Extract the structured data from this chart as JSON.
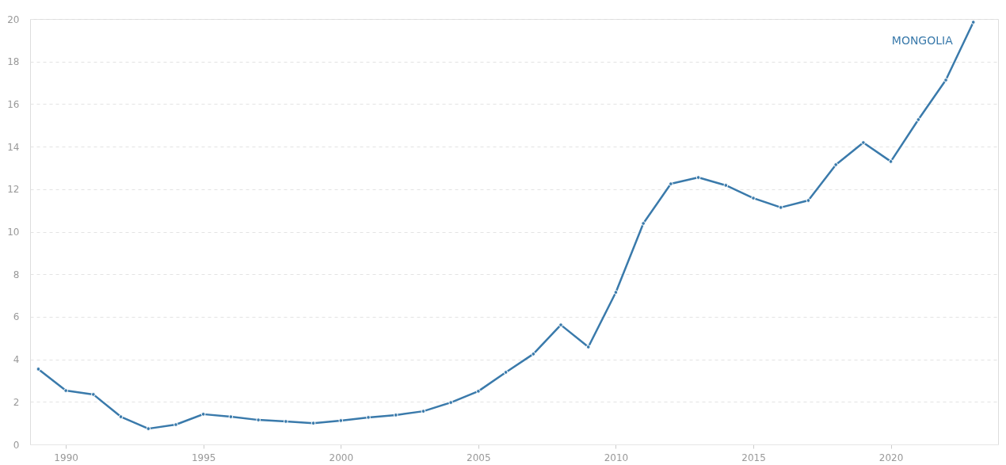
{
  "chart_data": {
    "type": "line",
    "x": [
      1989,
      1990,
      1991,
      1992,
      1993,
      1994,
      1995,
      1996,
      1997,
      1998,
      1999,
      2000,
      2001,
      2002,
      2003,
      2004,
      2005,
      2006,
      2007,
      2008,
      2009,
      2010,
      2011,
      2012,
      2013,
      2014,
      2015,
      2016,
      2017,
      2018,
      2019,
      2020,
      2021,
      2022,
      2023
    ],
    "series": [
      {
        "name": "MONGOLIA",
        "color": "#3a7aab",
        "values": [
          3.54,
          2.53,
          2.35,
          1.3,
          0.74,
          0.93,
          1.42,
          1.3,
          1.15,
          1.08,
          1.0,
          1.12,
          1.27,
          1.38,
          1.56,
          1.97,
          2.5,
          3.39,
          4.25,
          5.62,
          4.58,
          7.15,
          10.39,
          12.25,
          12.55,
          12.18,
          11.58,
          11.14,
          11.47,
          13.15,
          14.19,
          13.3,
          15.27,
          17.13,
          19.85
        ]
      }
    ],
    "xlim": [
      1988.7,
      2023.9
    ],
    "xticks": [
      1990,
      1995,
      2000,
      2005,
      2010,
      2015,
      2020
    ],
    "ylim": [
      0,
      20
    ],
    "yticks": [
      0,
      2,
      4,
      6,
      8,
      10,
      12,
      14,
      16,
      18,
      20
    ],
    "grid": "y",
    "marker": "circle",
    "line_style": "solid"
  }
}
